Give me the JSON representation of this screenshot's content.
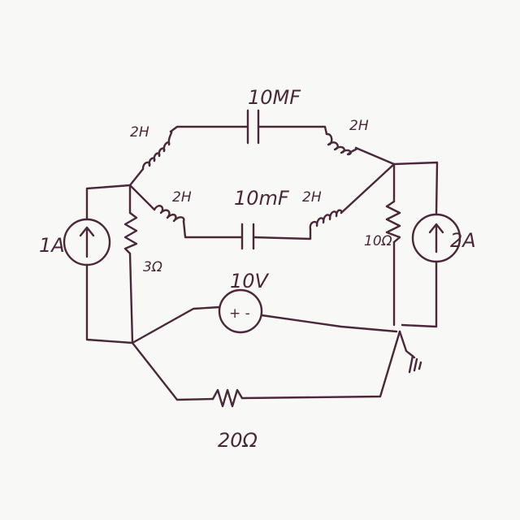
{
  "circuit": {
    "inductors": {
      "top_left": "2H",
      "top_right": "2H",
      "mid_left": "2H",
      "mid_right": "2H"
    },
    "capacitors": {
      "top": "10MF",
      "mid": "10mF"
    },
    "current_sources": {
      "left": "1A",
      "right": "2A"
    },
    "resistors": {
      "left": "3Ω",
      "right": "10Ω",
      "bottom": "20Ω"
    },
    "voltage_source": {
      "value": "10V",
      "polarity": "+ -"
    }
  }
}
